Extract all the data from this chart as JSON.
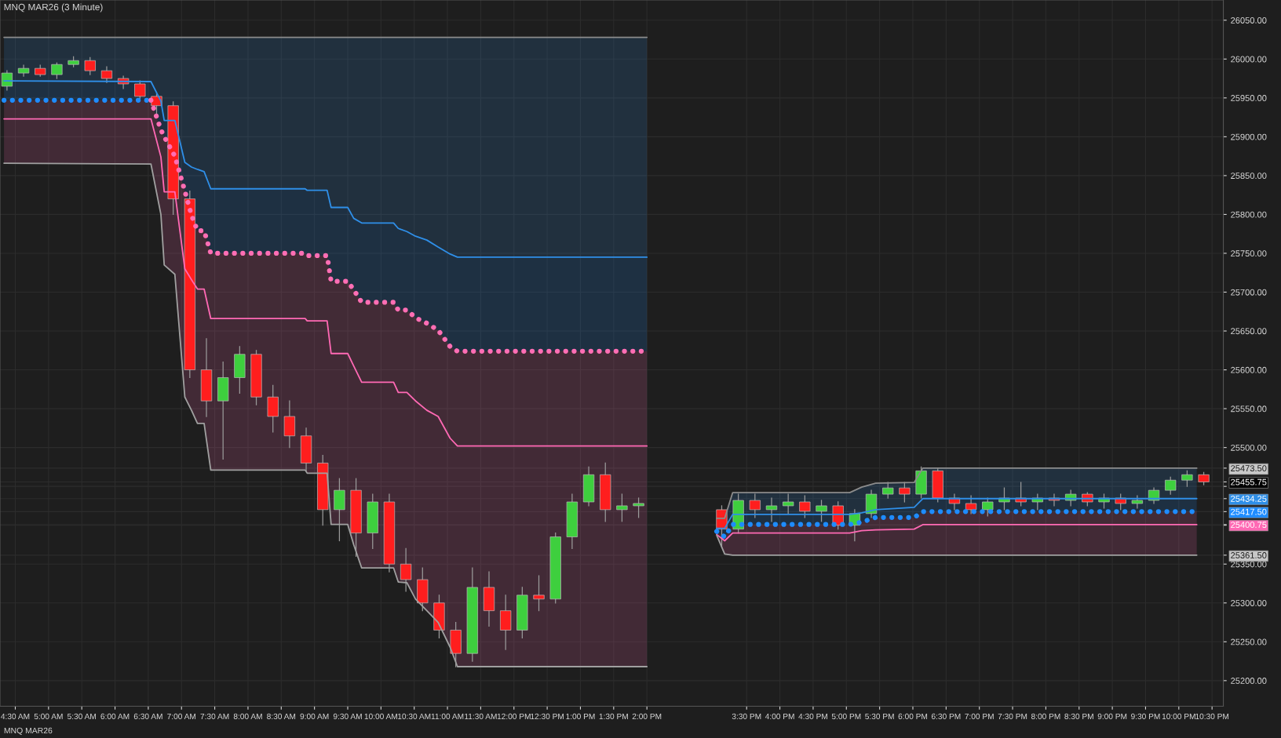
{
  "chart_data": {
    "type": "candlestick",
    "title": "MNQ MAR26 (3 Minute)",
    "x": [
      4.375,
      4.625,
      4.875,
      5.125,
      5.375,
      5.625,
      5.875,
      6.125,
      6.375,
      6.625,
      6.875,
      7.125,
      7.375,
      7.625,
      7.875,
      8.125,
      8.375,
      8.625,
      8.875,
      9.125,
      9.375,
      9.625,
      9.875,
      10.125,
      10.375,
      10.625,
      10.875,
      11.125,
      11.375,
      11.625,
      11.875,
      12.125,
      12.375,
      12.625,
      12.875,
      13.125,
      13.375,
      13.625,
      13.875,
      15.125,
      15.375,
      15.625,
      15.875,
      16.125,
      16.375,
      16.625,
      16.875,
      17.125,
      17.375,
      17.625,
      17.875,
      18.125,
      18.375,
      18.625,
      18.875,
      19.125,
      19.375,
      19.625,
      19.875,
      20.125,
      20.375,
      20.625,
      20.875,
      21.125,
      21.375,
      21.625,
      21.875,
      22.125,
      22.375
    ],
    "ohlc": [
      [
        25965,
        25985,
        25960,
        25982
      ],
      [
        25982,
        25992,
        25978,
        25988
      ],
      [
        25988,
        25992,
        25978,
        25980
      ],
      [
        25980,
        25995,
        25975,
        25993
      ],
      [
        25993,
        26003,
        25990,
        25998
      ],
      [
        25998,
        26002,
        25980,
        25985
      ],
      [
        25985,
        25990,
        25970,
        25975
      ],
      [
        25975,
        25978,
        25962,
        25968
      ],
      [
        25968,
        25972,
        25948,
        25952
      ],
      [
        25952,
        25955,
        25930,
        25940
      ],
      [
        25940,
        25945,
        25800,
        25820
      ],
      [
        25820,
        25830,
        25590,
        25600
      ],
      [
        25600,
        25640,
        25540,
        25560
      ],
      [
        25560,
        25610,
        25485,
        25590
      ],
      [
        25590,
        25630,
        25570,
        25620
      ],
      [
        25620,
        25625,
        25555,
        25565
      ],
      [
        25565,
        25580,
        25520,
        25540
      ],
      [
        25540,
        25560,
        25500,
        25515
      ],
      [
        25515,
        25525,
        25470,
        25480
      ],
      [
        25480,
        25490,
        25400,
        25420
      ],
      [
        25420,
        25460,
        25380,
        25445
      ],
      [
        25445,
        25460,
        25360,
        25390
      ],
      [
        25390,
        25440,
        25370,
        25430
      ],
      [
        25430,
        25440,
        25340,
        25350
      ],
      [
        25350,
        25370,
        25315,
        25330
      ],
      [
        25330,
        25345,
        25290,
        25300
      ],
      [
        25300,
        25310,
        25255,
        25265
      ],
      [
        25265,
        25275,
        25218,
        25235
      ],
      [
        25235,
        25345,
        25225,
        25320
      ],
      [
        25320,
        25340,
        25270,
        25290
      ],
      [
        25290,
        25310,
        25240,
        25265
      ],
      [
        25265,
        25320,
        25255,
        25310
      ],
      [
        25310,
        25335,
        25290,
        25305
      ],
      [
        25305,
        25390,
        25300,
        25385
      ],
      [
        25385,
        25440,
        25370,
        25430
      ],
      [
        25430,
        25475,
        25425,
        25465
      ],
      [
        25465,
        25480,
        25405,
        25420
      ],
      [
        25420,
        25440,
        25405,
        25425
      ],
      [
        25425,
        25435,
        25410,
        25428
      ],
      [
        25420,
        25425,
        25372,
        25395
      ],
      [
        25395,
        25440,
        25390,
        25432
      ],
      [
        25432,
        25440,
        25410,
        25420
      ],
      [
        25420,
        25435,
        25405,
        25425
      ],
      [
        25425,
        25440,
        25415,
        25430
      ],
      [
        25430,
        25438,
        25410,
        25418
      ],
      [
        25418,
        25432,
        25405,
        25425
      ],
      [
        25425,
        25430,
        25395,
        25400
      ],
      [
        25400,
        25420,
        25380,
        25415
      ],
      [
        25415,
        25445,
        25410,
        25440
      ],
      [
        25440,
        25455,
        25435,
        25448
      ],
      [
        25448,
        25455,
        25430,
        25440
      ],
      [
        25440,
        25475,
        25435,
        25470
      ],
      [
        25470,
        25473,
        25430,
        25435
      ],
      [
        25435,
        25440,
        25420,
        25428
      ],
      [
        25428,
        25438,
        25415,
        25420
      ],
      [
        25420,
        25435,
        25412,
        25430
      ],
      [
        25430,
        25448,
        25420,
        25435
      ],
      [
        25435,
        25455,
        25425,
        25430
      ],
      [
        25430,
        25440,
        25420,
        25435
      ],
      [
        25435,
        25440,
        25425,
        25432
      ],
      [
        25432,
        25445,
        25425,
        25440
      ],
      [
        25440,
        25442,
        25425,
        25430
      ],
      [
        25430,
        25440,
        25422,
        25435
      ],
      [
        25435,
        25440,
        25420,
        25428
      ],
      [
        25428,
        25438,
        25422,
        25432
      ],
      [
        25432,
        25448,
        25428,
        25445
      ],
      [
        25445,
        25462,
        25440,
        25458
      ],
      [
        25458,
        25470,
        25450,
        25465
      ],
      [
        25465,
        25468,
        25452,
        25455.75
      ]
    ],
    "series": [
      {
        "type": "line",
        "color": "#8c8c8c",
        "line_style": "solid",
        "x": [
          4.33,
          6.54,
          6.69,
          6.74,
          6.9,
          7.05,
          7.15,
          7.24,
          7.34,
          7.44,
          8.86,
          8.89,
          9.19,
          9.25,
          9.5,
          9.59,
          9.71,
          10.19,
          10.26,
          10.39,
          10.52,
          10.69,
          10.86,
          11.04,
          11.15,
          14.0,
          14.5,
          15.05,
          15.17,
          15.29,
          17.05,
          17.23,
          17.44,
          18.02,
          18.15,
          22.27
        ],
        "values": [
          26028,
          26028,
          26028,
          26028,
          26028,
          26028,
          26028,
          26028,
          26028,
          26028,
          26028,
          26028,
          26028,
          26028,
          26028,
          26028,
          26028,
          26028,
          26028,
          26028,
          26028,
          26028,
          26028,
          26028,
          26028,
          26028,
          null,
          25409,
          25409,
          25442,
          25442,
          25449,
          25454,
          25455,
          25473.5,
          25473.5
        ]
      },
      {
        "type": "line",
        "color": "#2f8fe8",
        "line_style": "solid",
        "x": [
          4.33,
          6.54,
          6.69,
          6.74,
          6.9,
          7.05,
          7.15,
          7.24,
          7.34,
          7.44,
          8.86,
          8.89,
          9.19,
          9.25,
          9.5,
          9.59,
          9.71,
          10.19,
          10.26,
          10.39,
          10.52,
          10.69,
          10.86,
          11.04,
          11.15,
          14.0,
          14.5,
          15.05,
          15.17,
          15.29,
          17.05,
          17.23,
          17.44,
          18.02,
          18.15,
          22.27
        ],
        "values": [
          25972,
          25971,
          25946,
          25921,
          25921,
          25867,
          25861,
          25858,
          25855,
          25833,
          25833,
          25831,
          25831,
          25809,
          25809,
          25795,
          25789,
          25789,
          25782,
          25778,
          25772,
          25767,
          25758,
          25749,
          25745,
          25745,
          null,
          25396,
          25396,
          25414,
          25414,
          25416,
          25420,
          25423,
          25434.25,
          25434.25
        ],
        "upper": [
          26028,
          26028,
          26028,
          26028,
          26028,
          26028,
          26028,
          26028,
          26028,
          26028,
          26028,
          26028,
          26028,
          26028,
          26028,
          26028,
          26028,
          26028,
          26028,
          26028,
          26028,
          26028,
          26028,
          26028,
          26028,
          26028,
          null,
          25409,
          25409,
          25442,
          25442,
          25449,
          25454,
          25455,
          25473.5,
          25473.5
        ],
        "lower": [
          25972,
          25971,
          25946,
          25921,
          25921,
          25867,
          25861,
          25858,
          25855,
          25833,
          25833,
          25831,
          25831,
          25809,
          25809,
          25795,
          25789,
          25789,
          25782,
          25778,
          25772,
          25767,
          25758,
          25749,
          25745,
          25745,
          null,
          25396,
          25396,
          25414,
          25414,
          25416,
          25420,
          25423,
          25434.25,
          25434.25
        ]
      },
      {
        "type": "line",
        "color": "#1e8cff",
        "line_style": "dotted",
        "x": [
          4.33,
          6.54,
          6.69,
          6.74,
          6.9,
          7.05,
          7.15,
          7.24,
          7.34,
          7.44,
          8.86,
          8.89,
          9.19,
          9.25,
          9.5,
          9.59,
          9.71,
          10.19,
          10.26,
          10.39,
          10.52,
          10.69,
          10.86,
          11.04,
          11.15,
          14.0,
          14.5,
          15.05,
          15.17,
          15.29,
          17.05,
          17.23,
          17.44,
          18.02,
          18.15,
          22.27
        ],
        "values": [
          25947,
          25947,
          null,
          null,
          null,
          null,
          null,
          null,
          null,
          null,
          null,
          null,
          null,
          null,
          null,
          null,
          null,
          null,
          null,
          null,
          null,
          null,
          null,
          null,
          null,
          null,
          null,
          25392,
          25385,
          25401,
          25401,
          25404,
          25410,
          25410,
          25417.5,
          25417.5
        ],
        "upper": [
          25972,
          25971,
          25946,
          25921,
          25921,
          25867,
          25861,
          25858,
          25855,
          25833,
          25833,
          25831,
          25831,
          25809,
          25809,
          25795,
          25789,
          25789,
          25782,
          25778,
          25772,
          25767,
          25758,
          25749,
          25745,
          25745,
          null,
          25396,
          25396,
          25414,
          25414,
          25416,
          25420,
          25423,
          25434.25,
          25434.25
        ],
        "lower": [
          25947,
          25947,
          25909,
          25900,
          25875,
          25830,
          25799,
          25779,
          25779,
          25750,
          25750,
          25747,
          25747,
          25714,
          25714,
          25703,
          25687,
          25687,
          25677,
          25677,
          25667,
          25660,
          25651,
          25630,
          25624,
          25624,
          null,
          25392,
          25385,
          25401,
          25401,
          25404,
          25410,
          25410,
          25417.5,
          25417.5
        ]
      },
      {
        "type": "line",
        "color": "#ff6eb4",
        "line_style": "dotted",
        "x": [
          4.33,
          6.54,
          6.69,
          6.74,
          6.9,
          7.05,
          7.15,
          7.24,
          7.34,
          7.44,
          8.86,
          8.89,
          9.19,
          9.25,
          9.5,
          9.59,
          9.71,
          10.19,
          10.26,
          10.39,
          10.52,
          10.69,
          10.86,
          11.04,
          11.15,
          14.0,
          14.5,
          15.05,
          15.17,
          15.29,
          17.05,
          17.23,
          17.44,
          18.02,
          18.15,
          22.27
        ],
        "values": [
          null,
          25947,
          25909,
          25900,
          25875,
          25830,
          25799,
          25779,
          25779,
          25750,
          25750,
          25747,
          25747,
          25714,
          25714,
          25703,
          25687,
          25687,
          25677,
          25677,
          25667,
          25660,
          25651,
          25630,
          25624,
          25624,
          null,
          null,
          null,
          null,
          null,
          null,
          null,
          null,
          null,
          null
        ],
        "upper": [
          25947,
          25947,
          25909,
          25900,
          25875,
          25830,
          25799,
          25779,
          25779,
          25750,
          25750,
          25747,
          25747,
          25714,
          25714,
          25703,
          25687,
          25687,
          25677,
          25677,
          25667,
          25660,
          25651,
          25630,
          25624,
          25624,
          null,
          25392,
          25385,
          25401,
          25401,
          25404,
          25410,
          25410,
          25417.5,
          25417.5
        ],
        "lower": [
          25923,
          25923,
          25874,
          25829,
          25829,
          25730,
          25716,
          25704,
          25704,
          25666,
          25666,
          25663,
          25663,
          25621,
          25621,
          25605,
          25584,
          25584,
          25571,
          25571,
          25560,
          25548,
          25540,
          25512,
          25502,
          25502,
          null,
          25388,
          25380,
          25390,
          25390,
          25393,
          25394,
          25395,
          25400.75,
          25400.75
        ]
      },
      {
        "type": "line",
        "color": "#ff69b4",
        "line_style": "solid",
        "x": [
          4.33,
          6.54,
          6.69,
          6.74,
          6.9,
          7.05,
          7.15,
          7.24,
          7.34,
          7.44,
          8.86,
          8.89,
          9.19,
          9.25,
          9.5,
          9.59,
          9.71,
          10.19,
          10.26,
          10.39,
          10.52,
          10.69,
          10.86,
          11.04,
          11.15,
          14.0,
          14.5,
          15.05,
          15.17,
          15.29,
          17.05,
          17.23,
          17.44,
          18.02,
          18.15,
          22.27
        ],
        "values": [
          25923,
          25923,
          25874,
          25829,
          25829,
          25730,
          25716,
          25704,
          25704,
          25666,
          25666,
          25663,
          25663,
          25621,
          25621,
          25605,
          25584,
          25584,
          25571,
          25571,
          25560,
          25548,
          25540,
          25512,
          25502,
          25502,
          null,
          25388,
          25380,
          25390,
          25390,
          25393,
          25394,
          25395,
          25400.75,
          25400.75
        ],
        "upper": [
          25923,
          25923,
          25874,
          25829,
          25829,
          25730,
          25716,
          25704,
          25704,
          25666,
          25666,
          25663,
          25663,
          25621,
          25621,
          25605,
          25584,
          25584,
          25571,
          25571,
          25560,
          25548,
          25540,
          25512,
          25502,
          25502,
          null,
          25388,
          25380,
          25390,
          25390,
          25393,
          25394,
          25395,
          25400.75,
          25400.75
        ],
        "lower": [
          25866,
          25865,
          25800,
          25735,
          25723,
          25565,
          25548,
          25531,
          25531,
          25471,
          25471,
          25467,
          25467,
          25401,
          25401,
          25375,
          25345,
          25345,
          25327,
          25326,
          25305,
          25290,
          25275,
          25243,
          25218,
          25218,
          null,
          25387,
          25363,
          25361.5,
          25361.5,
          25361.5,
          25361.5,
          25361.5,
          25361.5,
          25361.5
        ]
      },
      {
        "type": "line",
        "color": "#a0a0a0",
        "line_style": "solid",
        "x": [
          4.33,
          6.54,
          6.69,
          6.74,
          6.9,
          7.05,
          7.15,
          7.24,
          7.34,
          7.44,
          8.86,
          8.89,
          9.19,
          9.25,
          9.5,
          9.59,
          9.71,
          10.19,
          10.26,
          10.39,
          10.52,
          10.69,
          10.86,
          11.04,
          11.15,
          14.0,
          14.5,
          15.05,
          15.17,
          15.29,
          17.05,
          17.23,
          17.44,
          18.02,
          18.15,
          22.27
        ],
        "values": [
          25866,
          25865,
          25800,
          25735,
          25723,
          25565,
          25548,
          25531,
          25531,
          25471,
          25471,
          25467,
          25467,
          25401,
          25401,
          25375,
          25345,
          25345,
          25327,
          25326,
          25305,
          25290,
          25275,
          25243,
          25218,
          25218,
          null,
          25387,
          25363,
          25361.5,
          25361.5,
          25361.5,
          25361.5,
          25361.5,
          25361.5,
          25361.5
        ]
      }
    ],
    "xlim": [
      4.27,
      22.67
    ],
    "xticks": [
      {
        "value": 4.5,
        "label": "4:30 AM"
      },
      {
        "value": 5.0,
        "label": "5:00 AM"
      },
      {
        "value": 5.5,
        "label": "5:30 AM"
      },
      {
        "value": 6.0,
        "label": "6:00 AM"
      },
      {
        "value": 6.5,
        "label": "6:30 AM"
      },
      {
        "value": 7.0,
        "label": "7:00 AM"
      },
      {
        "value": 7.5,
        "label": "7:30 AM"
      },
      {
        "value": 8.0,
        "label": "8:00 AM"
      },
      {
        "value": 8.5,
        "label": "8:30 AM"
      },
      {
        "value": 9.0,
        "label": "9:00 AM"
      },
      {
        "value": 9.5,
        "label": "9:30 AM"
      },
      {
        "value": 10.0,
        "label": "10:00 AM"
      },
      {
        "value": 10.5,
        "label": "10:30 AM"
      },
      {
        "value": 11.0,
        "label": "11:00 AM"
      },
      {
        "value": 11.5,
        "label": "11:30 AM"
      },
      {
        "value": 12.0,
        "label": "12:00 PM"
      },
      {
        "value": 12.5,
        "label": "12:30 PM"
      },
      {
        "value": 13.0,
        "label": "1:00 PM"
      },
      {
        "value": 13.5,
        "label": "1:30 PM"
      },
      {
        "value": 14.0,
        "label": "2:00 PM"
      },
      {
        "value": 15.5,
        "label": "3:30 PM"
      },
      {
        "value": 16.0,
        "label": "4:00 PM"
      },
      {
        "value": 16.5,
        "label": "4:30 PM"
      },
      {
        "value": 17.0,
        "label": "5:00 PM"
      },
      {
        "value": 17.5,
        "label": "5:30 PM"
      },
      {
        "value": 18.0,
        "label": "6:00 PM"
      },
      {
        "value": 18.5,
        "label": "6:30 PM"
      },
      {
        "value": 19.0,
        "label": "7:00 PM"
      },
      {
        "value": 19.5,
        "label": "7:30 PM"
      },
      {
        "value": 20.0,
        "label": "8:00 PM"
      },
      {
        "value": 20.5,
        "label": "8:30 PM"
      },
      {
        "value": 21.0,
        "label": "9:00 PM"
      },
      {
        "value": 21.5,
        "label": "9:30 PM"
      },
      {
        "value": 22.0,
        "label": "10:00 PM"
      },
      {
        "value": 22.5,
        "label": "10:30 PM"
      }
    ],
    "ylim": [
      25167,
      26076
    ],
    "yticks": [
      {
        "value": 25200,
        "label": "25200.00"
      },
      {
        "value": 25250,
        "label": "25250.00"
      },
      {
        "value": 25300,
        "label": "25300.00"
      },
      {
        "value": 25350,
        "label": "25350.00"
      },
      {
        "value": 25361.5,
        "label": "25361.50"
      },
      {
        "value": 25400,
        "label": null
      },
      {
        "value": 25400.75,
        "label": "25400.75"
      },
      {
        "value": 25417.5,
        "label": "25417.50"
      },
      {
        "value": 25434.25,
        "label": "25434.25"
      },
      {
        "value": 25450,
        "label": null
      },
      {
        "value": 25455.75,
        "label": "25455.75"
      },
      {
        "value": 25473.5,
        "label": "25473.50"
      },
      {
        "value": 25500,
        "label": "25500.00"
      },
      {
        "value": 25550,
        "label": "25550.00"
      },
      {
        "value": 25600,
        "label": "25600.00"
      },
      {
        "value": 25650,
        "label": "25650.00"
      },
      {
        "value": 25700,
        "label": "25700.00"
      },
      {
        "value": 25750,
        "label": "25750.00"
      },
      {
        "value": 25800,
        "label": "25800.00"
      },
      {
        "value": 25850,
        "label": "25850.00"
      },
      {
        "value": 25900,
        "label": "25900.00"
      },
      {
        "value": 25950,
        "label": "25950.00"
      },
      {
        "value": 26000,
        "label": "26000.00"
      },
      {
        "value": 26050,
        "label": "26050.00"
      }
    ],
    "grid": true,
    "annotations": [
      "MNQ MAR26"
    ]
  }
}
